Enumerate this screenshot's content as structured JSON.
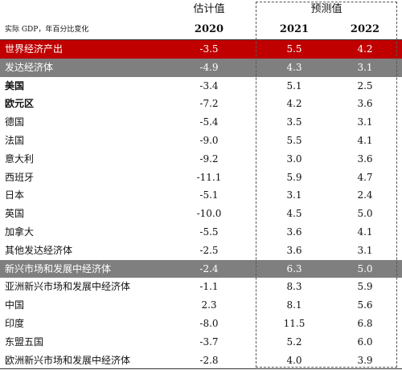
{
  "header": {
    "estimate_label": "估计值",
    "forecast_label": "预测值",
    "unit_label": "实际 GDP，年百分比变化",
    "years": [
      "2020",
      "2021",
      "2022"
    ]
  },
  "rows": [
    {
      "label": "世界经济产出",
      "v2020": "-3.5",
      "v2021": "5.5",
      "v2022": "4.2",
      "style": "hl-red"
    },
    {
      "label": "发达经济体",
      "v2020": "-4.9",
      "v2021": "4.3",
      "v2022": "3.1",
      "style": "hl-gray"
    },
    {
      "label": "美国",
      "v2020": "-3.4",
      "v2021": "5.1",
      "v2022": "2.5",
      "style": "bold"
    },
    {
      "label": "欧元区",
      "v2020": "-7.2",
      "v2021": "4.2",
      "v2022": "3.6",
      "style": "bold"
    },
    {
      "label": "德国",
      "v2020": "-5.4",
      "v2021": "3.5",
      "v2022": "3.1",
      "style": ""
    },
    {
      "label": "法国",
      "v2020": "-9.0",
      "v2021": "5.5",
      "v2022": "4.1",
      "style": ""
    },
    {
      "label": "意大利",
      "v2020": "-9.2",
      "v2021": "3.0",
      "v2022": "3.6",
      "style": ""
    },
    {
      "label": "西班牙",
      "v2020": "-11.1",
      "v2021": "5.9",
      "v2022": "4.7",
      "style": ""
    },
    {
      "label": "日本",
      "v2020": "-5.1",
      "v2021": "3.1",
      "v2022": "2.4",
      "style": ""
    },
    {
      "label": "英国",
      "v2020": "-10.0",
      "v2021": "4.5",
      "v2022": "5.0",
      "style": ""
    },
    {
      "label": "加拿大",
      "v2020": "-5.5",
      "v2021": "3.6",
      "v2022": "4.1",
      "style": ""
    },
    {
      "label": "其他发达经济体",
      "v2020": "-2.5",
      "v2021": "3.6",
      "v2022": "3.1",
      "style": ""
    },
    {
      "label": "新兴市场和发展中经济体",
      "v2020": "-2.4",
      "v2021": "6.3",
      "v2022": "5.0",
      "style": "hl-gray"
    },
    {
      "label": "亚洲新兴市场和发展中经济体",
      "v2020": "-1.1",
      "v2021": "8.3",
      "v2022": "5.9",
      "style": ""
    },
    {
      "label": "中国",
      "v2020": "2.3",
      "v2021": "8.1",
      "v2022": "5.6",
      "style": ""
    },
    {
      "label": "印度",
      "v2020": "-8.0",
      "v2021": "11.5",
      "v2022": "6.8",
      "style": ""
    },
    {
      "label": "东盟五国",
      "v2020": "-3.7",
      "v2021": "5.2",
      "v2022": "6.0",
      "style": ""
    },
    {
      "label": "欧洲新兴市场和发展中经济体",
      "v2020": "-2.8",
      "v2021": "4.0",
      "v2022": "3.9",
      "style": ""
    }
  ]
}
